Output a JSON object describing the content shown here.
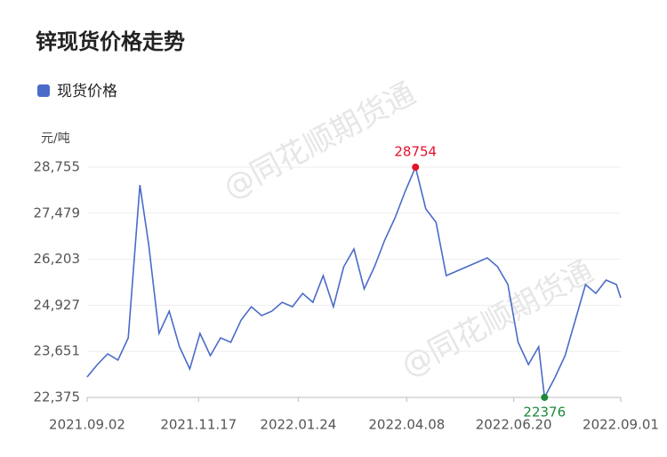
{
  "chart_data": {
    "type": "line",
    "title": "锌现货价格走势",
    "y_unit": "元/吨",
    "watermark": "@同花顺期货通",
    "xlim": [
      "2021.09.02",
      "2022.09.01"
    ],
    "xticks": [
      "2021.09.02",
      "2021.11.17",
      "2022.01.24",
      "2022.04.08",
      "2022.06.20",
      "2022.09.01"
    ],
    "ylim": [
      22375,
      28755
    ],
    "yticks": [
      {
        "value": 22375,
        "label": "22,375"
      },
      {
        "value": 23651,
        "label": "23,651"
      },
      {
        "value": 24927,
        "label": "24,927"
      },
      {
        "value": 26203,
        "label": "26,203"
      },
      {
        "value": 27479,
        "label": "27,479"
      },
      {
        "value": 28755,
        "label": "28,755"
      }
    ],
    "grid": true,
    "legend": "top-left",
    "x": [
      "2021.09.02",
      "2021.09.09",
      "2021.09.16",
      "2021.09.23",
      "2021.09.30",
      "2021.10.08",
      "2021.10.14",
      "2021.10.21",
      "2021.10.28",
      "2021.11.04",
      "2021.11.11",
      "2021.11.18",
      "2021.11.25",
      "2021.12.02",
      "2021.12.09",
      "2021.12.16",
      "2021.12.23",
      "2021.12.30",
      "2022.01.06",
      "2022.01.13",
      "2022.01.20",
      "2022.01.27",
      "2022.02.03",
      "2022.02.10",
      "2022.02.17",
      "2022.02.24",
      "2022.03.03",
      "2022.03.10",
      "2022.03.17",
      "2022.03.24",
      "2022.03.31",
      "2022.04.07",
      "2022.04.14",
      "2022.04.21",
      "2022.04.28",
      "2022.05.05",
      "2022.05.12",
      "2022.05.19",
      "2022.05.26",
      "2022.06.02",
      "2022.06.09",
      "2022.06.16",
      "2022.06.23",
      "2022.06.30",
      "2022.07.07",
      "2022.07.11",
      "2022.07.18",
      "2022.07.25",
      "2022.08.01",
      "2022.08.08",
      "2022.08.15",
      "2022.08.22",
      "2022.08.29",
      "2022.09.01"
    ],
    "series": [
      {
        "name": "现货价格",
        "color": "#4a6bc8",
        "values": [
          22942,
          23286,
          23582,
          23410,
          24025,
          28260,
          26611,
          24148,
          24764,
          23779,
          23163,
          24148,
          23532,
          24025,
          23902,
          24517,
          24887,
          24641,
          24764,
          25010,
          24887,
          25257,
          25010,
          25749,
          24887,
          25996,
          26488,
          25380,
          25996,
          26734,
          27350,
          28089,
          28754,
          27597,
          27227,
          25749,
          25873,
          25996,
          26119,
          26242,
          25996,
          25503,
          23902,
          23286,
          23779,
          22376,
          22917,
          23532,
          24517,
          25503,
          25257,
          25626,
          25503,
          25134
        ]
      }
    ],
    "max_point": {
      "index": 32,
      "color": "#e8102a"
    },
    "min_point": {
      "index": 45,
      "color": "#1a8a3a"
    }
  }
}
